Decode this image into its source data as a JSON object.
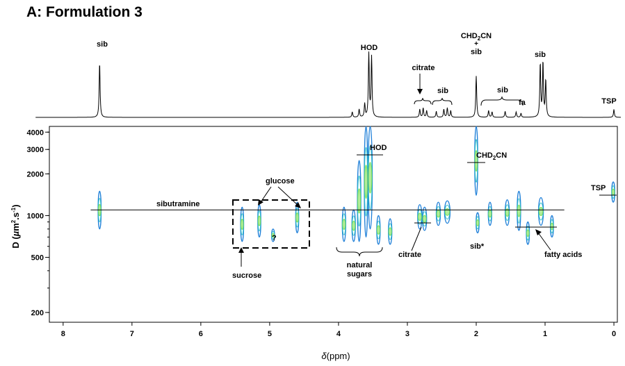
{
  "title": "A: Formulation 3",
  "chart_data": {
    "type": "2D DOSY NMR spectrum with 1D projection",
    "title": "A: Formulation 3",
    "xlabel": "δ(ppm)",
    "ylabel": "D (µm².s⁻¹)",
    "xlim": [
      8.2,
      -0.05
    ],
    "ylim": [
      170,
      4400
    ],
    "y_scale": "log",
    "x_ticks": [
      {
        "value": 8,
        "label": "8"
      },
      {
        "value": 7,
        "label": "7"
      },
      {
        "value": 6,
        "label": "6"
      },
      {
        "value": 5,
        "label": "5"
      },
      {
        "value": 4,
        "label": "4"
      },
      {
        "value": 3,
        "label": "3"
      },
      {
        "value": 2,
        "label": "2"
      },
      {
        "value": 1,
        "label": "1"
      },
      {
        "value": 0,
        "label": "0"
      }
    ],
    "y_ticks": [
      {
        "value": 4000,
        "label": "4000"
      },
      {
        "value": 3000,
        "label": "3000"
      },
      {
        "value": 2000,
        "label": "2000"
      },
      {
        "value": 1000,
        "label": "1000"
      },
      {
        "value": 500,
        "label": "500"
      },
      {
        "value": 200,
        "label": "200"
      }
    ],
    "spectrum_peaks": [
      {
        "ppm": 7.47,
        "height": 0.82
      },
      {
        "ppm": 3.56,
        "height": 0.95
      },
      {
        "ppm": 3.52,
        "height": 0.9
      },
      {
        "ppm": 3.62,
        "height": 0.2
      },
      {
        "ppm": 3.7,
        "height": 0.12
      },
      {
        "ppm": 3.8,
        "height": 0.08
      },
      {
        "ppm": 2.82,
        "height": 0.12
      },
      {
        "ppm": 2.77,
        "height": 0.14
      },
      {
        "ppm": 2.72,
        "height": 0.1
      },
      {
        "ppm": 2.58,
        "height": 0.09
      },
      {
        "ppm": 2.47,
        "height": 0.12
      },
      {
        "ppm": 2.42,
        "height": 0.14
      },
      {
        "ppm": 2.37,
        "height": 0.1
      },
      {
        "ppm": 2.0,
        "height": 0.62
      },
      {
        "ppm": 1.82,
        "height": 0.1
      },
      {
        "ppm": 1.77,
        "height": 0.08
      },
      {
        "ppm": 1.58,
        "height": 0.09
      },
      {
        "ppm": 1.42,
        "height": 0.08
      },
      {
        "ppm": 1.35,
        "height": 0.06
      },
      {
        "ppm": 1.07,
        "height": 0.8
      },
      {
        "ppm": 1.03,
        "height": 0.82
      },
      {
        "ppm": 0.99,
        "height": 0.55
      },
      {
        "ppm": 0.0,
        "height": 0.12
      }
    ],
    "reference_lines": [
      {
        "name": "sibutramine",
        "D": 1100,
        "x_from": 7.6,
        "x_to": 0.72
      }
    ],
    "signals": [
      {
        "ppm": 7.47,
        "D": 1050,
        "dmin": 800,
        "dmax": 1500,
        "w": 0.04
      },
      {
        "ppm": 5.4,
        "D": 900,
        "dmin": 650,
        "dmax": 1150,
        "w": 0.03
      },
      {
        "ppm": 5.15,
        "D": 950,
        "dmin": 700,
        "dmax": 1200,
        "w": 0.03
      },
      {
        "ppm": 4.95,
        "D": 720,
        "dmin": 650,
        "dmax": 800,
        "w": 0.03
      },
      {
        "ppm": 4.6,
        "D": 950,
        "dmin": 750,
        "dmax": 1250,
        "w": 0.03
      },
      {
        "ppm": 3.92,
        "D": 800,
        "dmin": 650,
        "dmax": 1150,
        "w": 0.05
      },
      {
        "ppm": 3.78,
        "D": 800,
        "dmin": 650,
        "dmax": 1100,
        "w": 0.05
      },
      {
        "ppm": 3.7,
        "D": 1200,
        "dmin": 650,
        "dmax": 2500,
        "w": 0.05
      },
      {
        "ppm": 3.6,
        "D": 1500,
        "dmin": 700,
        "dmax": 4400,
        "w": 0.05
      },
      {
        "ppm": 3.54,
        "D": 2000,
        "dmin": 800,
        "dmax": 4400,
        "w": 0.06
      },
      {
        "ppm": 3.42,
        "D": 800,
        "dmin": 620,
        "dmax": 1000,
        "w": 0.05
      },
      {
        "ppm": 3.25,
        "D": 780,
        "dmin": 620,
        "dmax": 950,
        "w": 0.05
      },
      {
        "ppm": 2.82,
        "D": 1000,
        "dmin": 800,
        "dmax": 1200,
        "w": 0.06
      },
      {
        "ppm": 2.75,
        "D": 950,
        "dmin": 780,
        "dmax": 1150,
        "w": 0.06
      },
      {
        "ppm": 2.55,
        "D": 1050,
        "dmin": 850,
        "dmax": 1250,
        "w": 0.06
      },
      {
        "ppm": 2.42,
        "D": 1080,
        "dmin": 880,
        "dmax": 1280,
        "w": 0.08
      },
      {
        "ppm": 2.0,
        "D": 2500,
        "dmin": 1400,
        "dmax": 4400,
        "w": 0.03
      },
      {
        "ppm": 1.98,
        "D": 880,
        "dmin": 750,
        "dmax": 1050,
        "w": 0.03
      },
      {
        "ppm": 1.8,
        "D": 1050,
        "dmin": 850,
        "dmax": 1250,
        "w": 0.05
      },
      {
        "ppm": 1.55,
        "D": 1050,
        "dmin": 850,
        "dmax": 1300,
        "w": 0.06
      },
      {
        "ppm": 1.38,
        "D": 1000,
        "dmin": 780,
        "dmax": 1500,
        "w": 0.05
      },
      {
        "ppm": 1.25,
        "D": 750,
        "dmin": 620,
        "dmax": 900,
        "w": 0.04
      },
      {
        "ppm": 1.06,
        "D": 1050,
        "dmin": 850,
        "dmax": 1350,
        "w": 0.07
      },
      {
        "ppm": 0.9,
        "D": 830,
        "dmin": 700,
        "dmax": 1000,
        "w": 0.03
      },
      {
        "ppm": 0.01,
        "D": 1450,
        "dmin": 1250,
        "dmax": 1750,
        "w": 0.03
      }
    ],
    "spectrum_labels": [
      {
        "text": "sib",
        "ppm": 7.47
      },
      {
        "text": "HOD",
        "ppm": 3.54
      },
      {
        "text": "citrate",
        "ppm": 2.75
      },
      {
        "text": "sib",
        "ppm": 2.44
      },
      {
        "text": "CHD2CN + sib",
        "ppm": 2.0
      },
      {
        "text": "sib",
        "ppm": 1.6
      },
      {
        "text": "fa",
        "ppm": 1.3
      },
      {
        "text": "sib",
        "ppm": 1.05
      },
      {
        "text": "TSP",
        "ppm": 0.0
      }
    ],
    "dosy_labels": [
      {
        "text": "HOD",
        "ppm": 3.54,
        "D": 3000
      },
      {
        "text": "CHD2CN",
        "ppm": 2.0,
        "D": 2600
      },
      {
        "text": "TSP",
        "ppm": 0.0,
        "D": 1500
      },
      {
        "text": "sibutramine",
        "ppm": 6.0,
        "D": 1150
      },
      {
        "text": "glucose",
        "ppm": 4.8,
        "D": 1350
      },
      {
        "text": "?",
        "ppm": 4.9,
        "D": 720
      },
      {
        "text": "sucrose",
        "ppm": 5.35,
        "D": 480
      },
      {
        "text": "natural sugars",
        "ppm": 3.6,
        "D": 480
      },
      {
        "text": "citrate",
        "ppm": 2.8,
        "D": 700
      },
      {
        "text": "sib*",
        "ppm": 2.0,
        "D": 700
      },
      {
        "text": "fatty acids",
        "ppm": 0.9,
        "D": 700
      }
    ]
  },
  "labels": {
    "sib_767": "sib",
    "hod_top": "HOD",
    "citrate_top": "citrate",
    "sib_244": "sib",
    "chd2cn_top_a": "CHD",
    "chd2cn_top_sub": "2",
    "chd2cn_top_b": "CN",
    "plus": "+",
    "sib_200": "sib",
    "sib_160": "sib",
    "fa": "fa",
    "sib_105": "sib",
    "tsp_top": "TSP",
    "hod": "HOD",
    "chd2cn_a": "CHD",
    "chd2cn_sub": "2",
    "chd2cn_b": "CN",
    "tsp": "TSP",
    "sibutramine": "sibutramine",
    "glucose": "glucose",
    "question": "?",
    "sucrose": "sucrose",
    "natural": "natural",
    "sugars": "sugars",
    "citrate": "citrate",
    "sib_star": "sib*",
    "fatty_acids": "fatty acids",
    "ylabel_pre": "D (",
    "ylabel_mu": "µ",
    "ylabel_m": "m",
    "ylabel_sq": "2",
    "ylabel_dot": ".s",
    "ylabel_inv": "-1",
    "ylabel_post": ")",
    "xlabel_delta": "δ",
    "xlabel_unit": "(ppm)"
  },
  "colors": {
    "contour_outer": "#1e7fd8",
    "contour_mid": "#31c2c8",
    "contour_inner": "#7ee05a",
    "line": "#000000"
  }
}
